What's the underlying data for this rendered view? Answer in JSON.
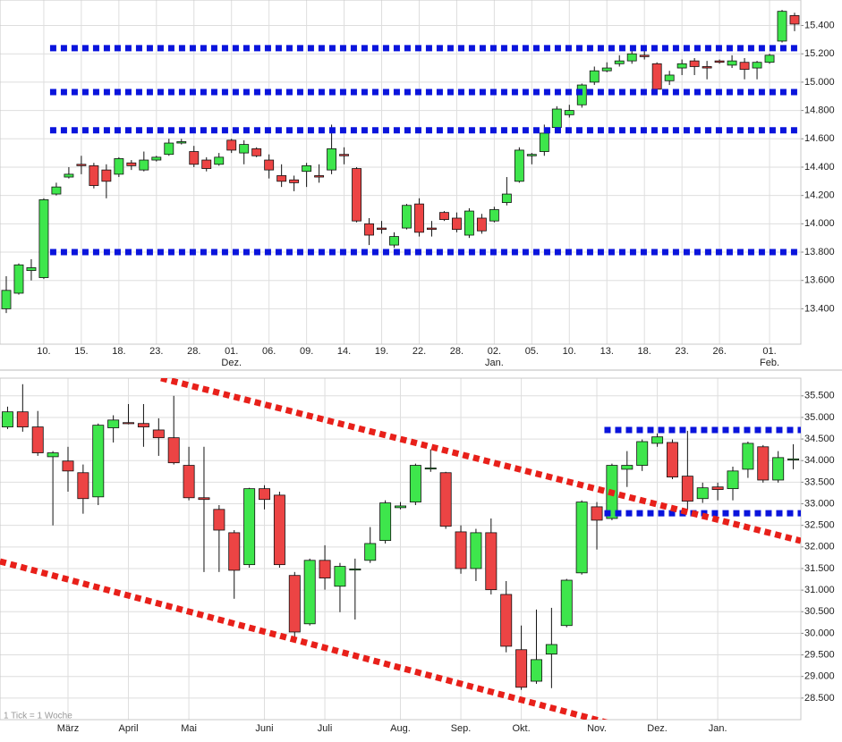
{
  "chart_data": [
    {
      "type": "candlestick",
      "categories": [
        null,
        null,
        null,
        "10.",
        null,
        null,
        "15.",
        null,
        null,
        "18.",
        null,
        null,
        "23.",
        null,
        null,
        "28.",
        null,
        null,
        "01.",
        null,
        null,
        "06.",
        null,
        null,
        "09.",
        null,
        null,
        "14.",
        null,
        null,
        "19.",
        null,
        null,
        "22.",
        null,
        null,
        "28.",
        null,
        null,
        "02.",
        null,
        null,
        "05.",
        null,
        null,
        "10.",
        null,
        null,
        "13.",
        null,
        null,
        "18.",
        null,
        null,
        "23.",
        null,
        null,
        "26.",
        null,
        null,
        null,
        "01.",
        null,
        null
      ],
      "months": [
        null,
        null,
        null,
        null,
        null,
        null,
        null,
        null,
        null,
        null,
        null,
        null,
        null,
        null,
        null,
        null,
        null,
        null,
        "Dez.",
        null,
        null,
        null,
        null,
        null,
        null,
        null,
        null,
        null,
        null,
        null,
        null,
        null,
        null,
        null,
        null,
        null,
        null,
        null,
        null,
        "Jan.",
        null,
        null,
        null,
        null,
        null,
        null,
        null,
        null,
        null,
        null,
        null,
        null,
        null,
        null,
        null,
        null,
        null,
        null,
        null,
        null,
        null,
        "Feb.",
        null,
        null
      ],
      "ohlc": [
        [
          13400,
          13630,
          13370,
          13530
        ],
        [
          13510,
          13720,
          13500,
          13710
        ],
        [
          13670,
          13750,
          13600,
          13690
        ],
        [
          13620,
          14180,
          13610,
          14170
        ],
        [
          14210,
          14290,
          14200,
          14260
        ],
        [
          14330,
          14400,
          14320,
          14350
        ],
        [
          14420,
          14480,
          14350,
          14410
        ],
        [
          14410,
          14430,
          14250,
          14270
        ],
        [
          14380,
          14420,
          14180,
          14300
        ],
        [
          14350,
          14470,
          14330,
          14460
        ],
        [
          14430,
          14450,
          14380,
          14410
        ],
        [
          14380,
          14510,
          14370,
          14450
        ],
        [
          14450,
          14480,
          14440,
          14470
        ],
        [
          14490,
          14600,
          14480,
          14570
        ],
        [
          14570,
          14600,
          14560,
          14580
        ],
        [
          14510,
          14550,
          14400,
          14420
        ],
        [
          14450,
          14470,
          14370,
          14390
        ],
        [
          14420,
          14500,
          14410,
          14470
        ],
        [
          14590,
          14600,
          14500,
          14520
        ],
        [
          14500,
          14590,
          14420,
          14560
        ],
        [
          14530,
          14540,
          14470,
          14480
        ],
        [
          14450,
          14490,
          14320,
          14380
        ],
        [
          14340,
          14420,
          14260,
          14300
        ],
        [
          14310,
          14340,
          14230,
          14290
        ],
        [
          14370,
          14430,
          14260,
          14410
        ],
        [
          14340,
          14420,
          14290,
          14330
        ],
        [
          14380,
          14700,
          14350,
          14530
        ],
        [
          14490,
          14540,
          14420,
          14480
        ],
        [
          14390,
          14400,
          14010,
          14020
        ],
        [
          14000,
          14040,
          13850,
          13920
        ],
        [
          13970,
          14020,
          13930,
          13960
        ],
        [
          13850,
          13940,
          13830,
          13910
        ],
        [
          13970,
          14140,
          13960,
          14130
        ],
        [
          14140,
          14180,
          13910,
          13940
        ],
        [
          13970,
          14020,
          13910,
          13960
        ],
        [
          14080,
          14090,
          14020,
          14030
        ],
        [
          14040,
          14080,
          13940,
          13960
        ],
        [
          13920,
          14110,
          13900,
          14090
        ],
        [
          14040,
          14070,
          13930,
          13950
        ],
        [
          14020,
          14120,
          14010,
          14100
        ],
        [
          14150,
          14330,
          14130,
          14210
        ],
        [
          14300,
          14540,
          14290,
          14520
        ],
        [
          14480,
          14500,
          14420,
          14490
        ],
        [
          14510,
          14700,
          14480,
          14640
        ],
        [
          14680,
          14830,
          14670,
          14810
        ],
        [
          14770,
          14840,
          14750,
          14800
        ],
        [
          14840,
          14990,
          14820,
          14980
        ],
        [
          15000,
          15110,
          14980,
          15080
        ],
        [
          15080,
          15140,
          15070,
          15100
        ],
        [
          15130,
          15190,
          15110,
          15150
        ],
        [
          15150,
          15260,
          15130,
          15200
        ],
        [
          15190,
          15240,
          15160,
          15180
        ],
        [
          15130,
          15140,
          14920,
          14950
        ],
        [
          15010,
          15080,
          14980,
          15050
        ],
        [
          15100,
          15160,
          15050,
          15130
        ],
        [
          15150,
          15170,
          15050,
          15110
        ],
        [
          15110,
          15150,
          15020,
          15100
        ],
        [
          15150,
          15160,
          15130,
          15140
        ],
        [
          15120,
          15190,
          15100,
          15150
        ],
        [
          15140,
          15170,
          15020,
          15090
        ],
        [
          15100,
          15150,
          15020,
          15140
        ],
        [
          15140,
          15200,
          15130,
          15190
        ],
        [
          15290,
          15510,
          15280,
          15500
        ],
        [
          15470,
          15490,
          15360,
          15410
        ]
      ],
      "ylim": [
        13150,
        15580
      ],
      "yticks": [
        {
          "value": 13400,
          "label": "13.400"
        },
        {
          "value": 13600,
          "label": "13.600"
        },
        {
          "value": 13800,
          "label": "13.800"
        },
        {
          "value": 14000,
          "label": "14.000"
        },
        {
          "value": 14200,
          "label": "14.200"
        },
        {
          "value": 14400,
          "label": "14.400"
        },
        {
          "value": 14600,
          "label": "14.600"
        },
        {
          "value": 14800,
          "label": "14.800"
        },
        {
          "value": 15000,
          "label": "15.000"
        },
        {
          "value": 15200,
          "label": "15.200"
        },
        {
          "value": 15400,
          "label": "15.400"
        }
      ],
      "levels": [
        {
          "value": 15240,
          "from": 4
        },
        {
          "value": 14930,
          "from": 4
        },
        {
          "value": 14660,
          "from": 4
        },
        {
          "value": 13800,
          "from": 4
        }
      ],
      "grid": true,
      "colors": {
        "up": "#3ee64c",
        "down": "#ec4444",
        "level": "#0a14dc"
      }
    },
    {
      "type": "candlestick",
      "categories": [
        null,
        null,
        null,
        null,
        "März",
        null,
        null,
        null,
        "April",
        null,
        null,
        null,
        "Mai",
        null,
        null,
        null,
        null,
        "Juni",
        null,
        null,
        null,
        "Juli",
        null,
        null,
        null,
        null,
        "Aug.",
        null,
        null,
        null,
        "Sep.",
        null,
        null,
        null,
        "Okt.",
        null,
        null,
        null,
        null,
        "Nov.",
        null,
        null,
        null,
        "Dez.",
        null,
        null,
        null,
        "Jan.",
        null,
        null,
        null,
        null,
        null
      ],
      "ohlc": [
        [
          34780,
          35250,
          34730,
          35130
        ],
        [
          35130,
          35770,
          34670,
          34780
        ],
        [
          34780,
          35150,
          34110,
          34180
        ],
        [
          34090,
          34220,
          32500,
          34180
        ],
        [
          33990,
          34320,
          33280,
          33760
        ],
        [
          33720,
          33910,
          32770,
          33120
        ],
        [
          33160,
          34860,
          32970,
          34820
        ],
        [
          34760,
          35050,
          34420,
          34940
        ],
        [
          34880,
          35310,
          34840,
          34860
        ],
        [
          34860,
          35310,
          34320,
          34780
        ],
        [
          34710,
          34980,
          34110,
          34530
        ],
        [
          34530,
          35500,
          33910,
          33950
        ],
        [
          33890,
          34320,
          33080,
          33140
        ],
        [
          33140,
          34320,
          31420,
          33100
        ],
        [
          32870,
          32970,
          31420,
          32390
        ],
        [
          32330,
          32390,
          30800,
          31460
        ],
        [
          31590,
          33370,
          31520,
          33350
        ],
        [
          33350,
          33430,
          32870,
          33100
        ],
        [
          33200,
          33280,
          31520,
          31590
        ],
        [
          31340,
          31420,
          29810,
          30030
        ],
        [
          30220,
          31730,
          30180,
          31690
        ],
        [
          31690,
          32040,
          31010,
          31280
        ],
        [
          31090,
          31630,
          30490,
          31550
        ],
        [
          31480,
          31730,
          30320,
          31490
        ],
        [
          31690,
          32460,
          31630,
          32080
        ],
        [
          32150,
          33080,
          32080,
          33020
        ],
        [
          32910,
          33040,
          32870,
          32950
        ],
        [
          33040,
          33930,
          32970,
          33890
        ],
        [
          33820,
          34260,
          33740,
          33830
        ],
        [
          33720,
          33740,
          32420,
          32480
        ],
        [
          32350,
          32500,
          31380,
          31500
        ],
        [
          31500,
          32420,
          31210,
          32330
        ],
        [
          32330,
          32660,
          30900,
          31010
        ],
        [
          30900,
          31210,
          29560,
          29700
        ],
        [
          29620,
          30180,
          28690,
          28750
        ],
        [
          28890,
          30550,
          28830,
          29390
        ],
        [
          29520,
          30590,
          28730,
          29740
        ],
        [
          30180,
          31260,
          30140,
          31230
        ],
        [
          31400,
          33080,
          31360,
          33040
        ],
        [
          32930,
          33040,
          31940,
          32620
        ],
        [
          32660,
          33930,
          32620,
          33890
        ],
        [
          33800,
          34220,
          33390,
          33890
        ],
        [
          33890,
          34490,
          33760,
          34440
        ],
        [
          34400,
          34630,
          34320,
          34550
        ],
        [
          34420,
          34490,
          33570,
          33620
        ],
        [
          33640,
          34690,
          32870,
          33060
        ],
        [
          33120,
          33490,
          33020,
          33370
        ],
        [
          33390,
          33490,
          33080,
          33330
        ],
        [
          33350,
          33860,
          33080,
          33760
        ],
        [
          33800,
          34440,
          33600,
          34400
        ],
        [
          34320,
          34360,
          33490,
          33550
        ],
        [
          33550,
          34220,
          33490,
          34070
        ],
        [
          34030,
          34380,
          33800,
          34040
        ]
      ],
      "ylim": [
        28000,
        35910
      ],
      "yticks": [
        {
          "value": 28500,
          "label": "28.500"
        },
        {
          "value": 29000,
          "label": "29.000"
        },
        {
          "value": 29500,
          "label": "29.500"
        },
        {
          "value": 30000,
          "label": "30.000"
        },
        {
          "value": 30500,
          "label": "30.500"
        },
        {
          "value": 31000,
          "label": "31.000"
        },
        {
          "value": 31500,
          "label": "31.500"
        },
        {
          "value": 32000,
          "label": "32.000"
        },
        {
          "value": 32500,
          "label": "32.500"
        },
        {
          "value": 33000,
          "label": "33.000"
        },
        {
          "value": 33500,
          "label": "33.500"
        },
        {
          "value": 34000,
          "label": "34.000"
        },
        {
          "value": 34500,
          "label": "34.500"
        },
        {
          "value": 35000,
          "label": "35.000"
        },
        {
          "value": 35500,
          "label": "35.500"
        }
      ],
      "levels": [
        {
          "value": 34710,
          "from": 40
        },
        {
          "value": 32780,
          "from": 40
        }
      ],
      "grid": true,
      "footnote": "1 Tick = 1 Woche",
      "colors": {
        "up": "#3ee64c",
        "down": "#ec4444",
        "level": "#0a14dc"
      }
    }
  ]
}
